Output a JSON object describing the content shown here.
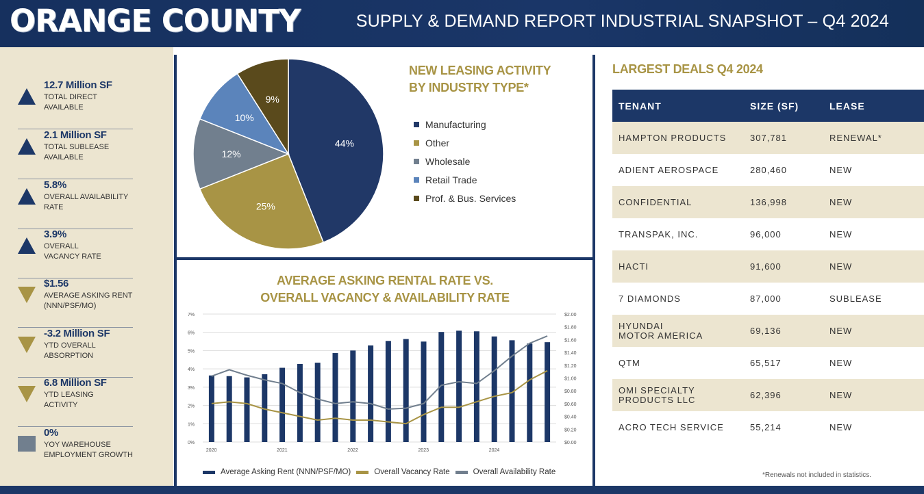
{
  "header": {
    "county": "ORANGE COUNTY",
    "report_title": "SUPPLY & DEMAND REPORT  INDUSTRIAL SNAPSHOT – Q4 2024"
  },
  "colors": {
    "navy": "#1c3767",
    "gold": "#a89445",
    "slate": "#717f8e",
    "light_blue": "#5b84bb",
    "dark_brown": "#5a4a1c",
    "beige": "#ece5d0"
  },
  "stats": [
    {
      "value": "12.7 Million SF",
      "label": "TOTAL DIRECT AVAILABLE",
      "trend": "up"
    },
    {
      "value": "2.1 Million SF",
      "label": "TOTAL SUBLEASE AVAILABLE",
      "trend": "up"
    },
    {
      "value": "5.8%",
      "label": "OVERALL AVAILABILITY RATE",
      "trend": "up"
    },
    {
      "value": "3.9%",
      "label": "OVERALL VACANCY RATE",
      "trend": "up"
    },
    {
      "value": "$1.56",
      "label": "AVERAGE ASKING RENT (NNN/PSF/MO)",
      "trend": "down"
    },
    {
      "value": "-3.2 Million SF",
      "label": "YTD OVERALL ABSORPTION",
      "trend": "down"
    },
    {
      "value": "6.8 Million SF",
      "label": "YTD LEASING ACTIVITY",
      "trend": "down"
    },
    {
      "value": "0%",
      "label": "YOY WAREHOUSE EMPLOYMENT GROWTH",
      "trend": "flat"
    }
  ],
  "pie": {
    "title_line1": "NEW LEASING ACTIVITY",
    "title_line2": "BY INDUSTRY TYPE*"
  },
  "bar_chart": {
    "title_line1": "AVERAGE ASKING RENTAL RATE VS.",
    "title_line2": "OVERALL VACANCY & AVAILABILITY RATE"
  },
  "chart_data": [
    {
      "type": "pie",
      "title": "NEW LEASING ACTIVITY BY INDUSTRY TYPE*",
      "legend_position": "right",
      "slices": [
        {
          "label": "Manufacturing",
          "value": 44,
          "display": "44%",
          "color": "#213867"
        },
        {
          "label": "Other",
          "value": 25,
          "display": "25%",
          "color": "#a89445"
        },
        {
          "label": "Wholesale",
          "value": 12,
          "display": "12%",
          "color": "#717f8e"
        },
        {
          "label": "Retail Trade",
          "value": 10,
          "display": "10%",
          "color": "#5b84bb"
        },
        {
          "label": "Prof. & Bus. Services",
          "value": 9,
          "display": "9%",
          "color": "#5a4a1c"
        }
      ]
    },
    {
      "type": "bar",
      "title": "AVERAGE ASKING RENTAL RATE VS. OVERALL VACANCY & AVAILABILITY RATE",
      "x_tick_labels": [
        "2020",
        "2021",
        "2022",
        "2023",
        "2024"
      ],
      "x_tick_quarter_index": [
        0,
        4,
        8,
        12,
        16
      ],
      "left_axis": {
        "ticks": [
          "0%",
          "1%",
          "2%",
          "3%",
          "4%",
          "5%",
          "6%",
          "7%"
        ],
        "range": [
          0,
          7
        ]
      },
      "right_axis": {
        "ticks": [
          "$0.00",
          "$0.20",
          "$0.40",
          "$0.60",
          "$0.80",
          "$1.00",
          "$1.20",
          "$1.40",
          "$1.60",
          "$1.80",
          "$2.00"
        ],
        "range": [
          0,
          2
        ]
      },
      "grid": true,
      "legend_position": "bottom",
      "series": [
        {
          "name": "Average Asking Rent (NNN/PSF/MO)",
          "kind": "bar",
          "axis": "right",
          "color": "#1c3767",
          "values": [
            1.04,
            1.03,
            1.01,
            1.06,
            1.16,
            1.22,
            1.24,
            1.39,
            1.43,
            1.51,
            1.58,
            1.61,
            1.57,
            1.72,
            1.74,
            1.73,
            1.65,
            1.59,
            1.54,
            1.56
          ]
        },
        {
          "name": "Overall Vacancy Rate",
          "kind": "line",
          "axis": "left",
          "color": "#a89445",
          "values": [
            2.1,
            2.2,
            2.1,
            1.8,
            1.6,
            1.4,
            1.2,
            1.3,
            1.2,
            1.2,
            1.1,
            1.0,
            1.5,
            1.9,
            1.9,
            2.2,
            2.5,
            2.7,
            3.4,
            3.9
          ]
        },
        {
          "name": "Overall Availability Rate",
          "kind": "line",
          "axis": "left",
          "color": "#717f8e",
          "values": [
            3.6,
            3.95,
            3.65,
            3.4,
            3.2,
            2.7,
            2.35,
            2.1,
            2.2,
            2.1,
            1.8,
            1.85,
            2.1,
            3.1,
            3.3,
            3.2,
            3.9,
            4.7,
            5.4,
            5.8
          ]
        }
      ]
    }
  ],
  "deals": {
    "title": "LARGEST DEALS Q4 2024",
    "columns": [
      "TENANT",
      "SIZE (SF)",
      "LEASE"
    ],
    "rows": [
      [
        "HAMPTON PRODUCTS",
        "307,781",
        "RENEWAL*"
      ],
      [
        "ADIENT AEROSPACE",
        "280,460",
        "NEW"
      ],
      [
        "CONFIDENTIAL",
        "136,998",
        "NEW"
      ],
      [
        "TRANSPAK, INC.",
        "96,000",
        "NEW"
      ],
      [
        "HACTI",
        "91,600",
        "NEW"
      ],
      [
        "7 DIAMONDS",
        "87,000",
        "SUBLEASE"
      ],
      [
        "HYUNDAI\nMOTOR AMERICA",
        "69,136",
        "NEW"
      ],
      [
        "QTM",
        "65,517",
        "NEW"
      ],
      [
        "OMI SPECIALTY\nPRODUCTS LLC",
        "62,396",
        "NEW"
      ],
      [
        "ACRO TECH SERVICE",
        "55,214",
        "NEW"
      ]
    ],
    "footnote": "*Renewals not included in statistics."
  }
}
